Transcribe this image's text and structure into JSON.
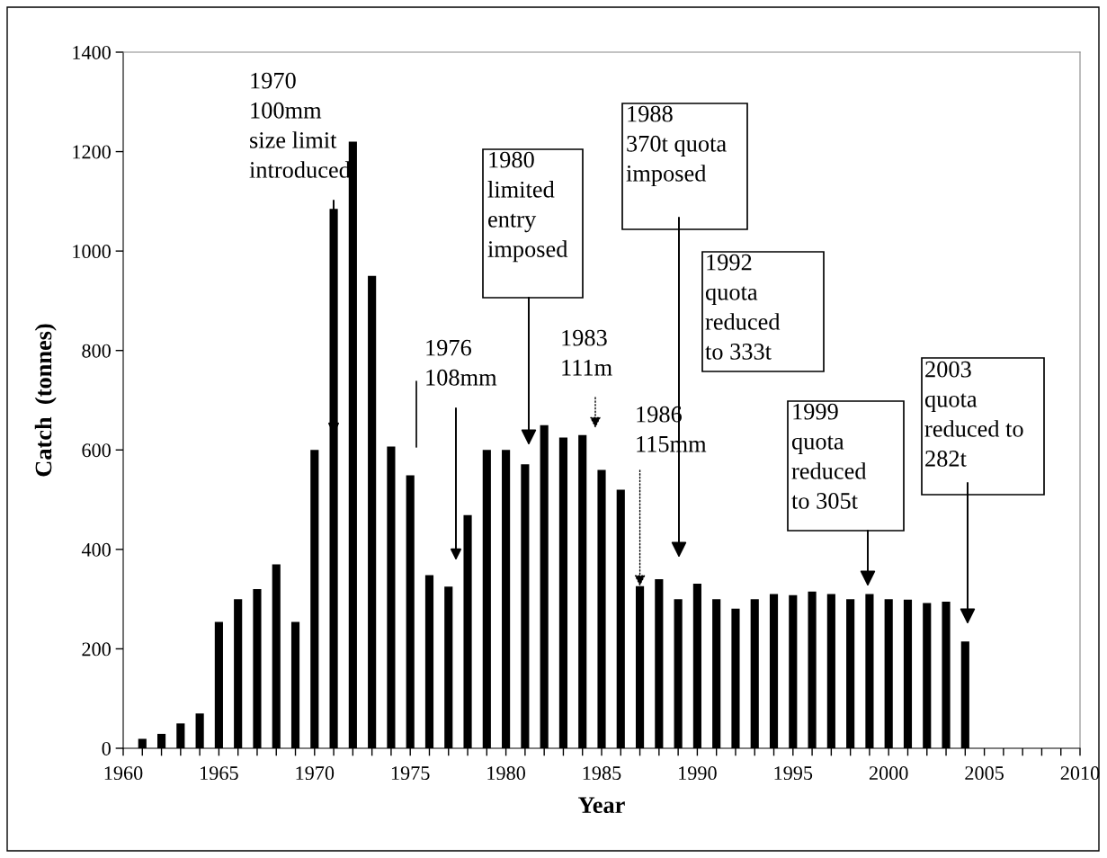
{
  "chart_data": {
    "type": "bar",
    "xlabel": "Year",
    "ylabel": "Catch  (tonnes)",
    "color": "#000000",
    "x": [
      1961,
      1962,
      1963,
      1964,
      1965,
      1966,
      1967,
      1968,
      1969,
      1970,
      1971,
      1972,
      1973,
      1974,
      1975,
      1976,
      1977,
      1978,
      1979,
      1980,
      1981,
      1982,
      1983,
      1984,
      1985,
      1986,
      1987,
      1988,
      1989,
      1990,
      1991,
      1992,
      1993,
      1994,
      1995,
      1996,
      1997,
      1998,
      1999,
      2000,
      2001,
      2002,
      2003,
      2004
    ],
    "values": [
      19,
      29,
      50,
      70,
      254,
      300,
      320,
      370,
      254,
      600,
      1085,
      1220,
      950,
      607,
      549,
      348,
      325,
      469,
      600,
      600,
      571,
      650,
      625,
      630,
      560,
      520,
      326,
      340,
      300,
      331,
      300,
      281,
      300,
      310,
      308,
      315,
      310,
      300,
      310,
      300,
      299,
      292,
      295,
      215
    ],
    "xlim": [
      1960,
      2010
    ],
    "xticks": [
      1960,
      {
        "value": 1961,
        "label": null
      },
      {
        "value": 1962,
        "label": null
      },
      {
        "value": 1963,
        "label": null
      },
      {
        "value": 1964,
        "label": null
      },
      1965,
      {
        "value": 1966,
        "label": null
      },
      {
        "value": 1967,
        "label": null
      },
      {
        "value": 1968,
        "label": null
      },
      {
        "value": 1969,
        "label": null
      },
      1970,
      {
        "value": 1971,
        "label": null
      },
      {
        "value": 1972,
        "label": null
      },
      {
        "value": 1973,
        "label": null
      },
      {
        "value": 1974,
        "label": null
      },
      1975,
      {
        "value": 1976,
        "label": null
      },
      {
        "value": 1977,
        "label": null
      },
      {
        "value": 1978,
        "label": null
      },
      {
        "value": 1979,
        "label": null
      },
      1980,
      {
        "value": 1981,
        "label": null
      },
      {
        "value": 1982,
        "label": null
      },
      {
        "value": 1983,
        "label": null
      },
      {
        "value": 1984,
        "label": null
      },
      1985,
      {
        "value": 1986,
        "label": null
      },
      {
        "value": 1987,
        "label": null
      },
      {
        "value": 1988,
        "label": null
      },
      {
        "value": 1989,
        "label": null
      },
      1990,
      {
        "value": 1991,
        "label": null
      },
      {
        "value": 1992,
        "label": null
      },
      {
        "value": 1993,
        "label": null
      },
      {
        "value": 1994,
        "label": null
      },
      1995,
      {
        "value": 1996,
        "label": null
      },
      {
        "value": 1997,
        "label": null
      },
      {
        "value": 1998,
        "label": null
      },
      {
        "value": 1999,
        "label": null
      },
      2000,
      {
        "value": 2001,
        "label": null
      },
      {
        "value": 2002,
        "label": null
      },
      {
        "value": 2003,
        "label": null
      },
      {
        "value": 2004,
        "label": null
      },
      2005,
      {
        "value": 2006,
        "label": null
      },
      {
        "value": 2007,
        "label": null
      },
      {
        "value": 2008,
        "label": null
      },
      {
        "value": 2009,
        "label": null
      },
      2010
    ],
    "ylim": [
      0,
      1400
    ],
    "yticks": [
      0,
      200,
      400,
      600,
      800,
      1000,
      1200,
      1400
    ],
    "grid": false,
    "annotations": [
      "1970\n100mm\nsize limit\nintroduced",
      "1976\n108mm",
      "1980\nlimited\nentry\nimposed",
      "1983\n111m",
      {
        "text": "1986\n115mm",
        "x": 1987,
        "y": 326
      },
      "1988\n370t quota\nimposed",
      "1992\nquota\nreduced\nto 333t",
      "1999\nquota\nreduced\nto 305t",
      "2003\nquota\nreduced to\n282t"
    ]
  }
}
